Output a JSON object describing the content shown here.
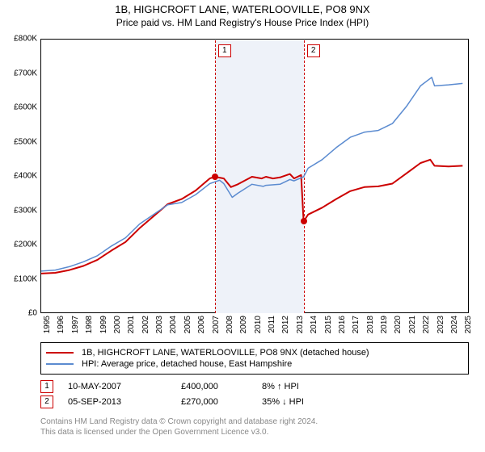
{
  "chart": {
    "title_line1": "1B, HIGHCROFT LANE, WATERLOOVILLE, PO8 9NX",
    "title_line2": "Price paid vs. HM Land Registry's House Price Index (HPI)",
    "title_fontsize": 13,
    "subtitle_fontsize": 12,
    "background_color": "#ffffff",
    "plot_border_color": "#000000",
    "shaded_band_color": "#eef2f9",
    "sale_marker_border": "#cc0000",
    "sale_dot_color": "#cc0000",
    "x": {
      "min": 1995,
      "max": 2025.5,
      "ticks": [
        1995,
        1996,
        1997,
        1998,
        1999,
        2000,
        2001,
        2002,
        2003,
        2004,
        2005,
        2006,
        2007,
        2008,
        2009,
        2010,
        2011,
        2012,
        2013,
        2014,
        2015,
        2016,
        2017,
        2018,
        2019,
        2020,
        2021,
        2022,
        2023,
        2024,
        2025
      ]
    },
    "y": {
      "min": 0,
      "max": 800,
      "ticks": [
        0,
        100,
        200,
        300,
        400,
        500,
        600,
        700,
        800
      ],
      "tick_labels": [
        "£0",
        "£100K",
        "£200K",
        "£300K",
        "£400K",
        "£500K",
        "£600K",
        "£700K",
        "£800K"
      ]
    },
    "shaded_band": {
      "from": 2007.36,
      "to": 2013.68
    },
    "series": [
      {
        "id": "property",
        "label": "1B, HIGHCROFT LANE, WATERLOOVILLE, PO8 9NX (detached house)",
        "color": "#cc0000",
        "width": 2,
        "segments": [
          [
            [
              1995,
              118
            ],
            [
              1996,
              120
            ],
            [
              1997,
              128
            ],
            [
              1998,
              140
            ],
            [
              1999,
              158
            ],
            [
              2000,
              185
            ],
            [
              2001,
              210
            ],
            [
              2002,
              250
            ],
            [
              2003,
              285
            ],
            [
              2004,
              320
            ],
            [
              2005,
              335
            ],
            [
              2006,
              360
            ],
            [
              2007,
              395
            ],
            [
              2007.36,
              400
            ]
          ],
          [
            [
              2007.36,
              400
            ],
            [
              2008,
              395
            ],
            [
              2008.5,
              370
            ],
            [
              2009,
              378
            ],
            [
              2010,
              400
            ],
            [
              2010.7,
              395
            ],
            [
              2011,
              400
            ],
            [
              2011.5,
              395
            ],
            [
              2012,
              398
            ],
            [
              2012.7,
              408
            ],
            [
              2013,
              395
            ],
            [
              2013.5,
              405
            ],
            [
              2013.68,
              270
            ]
          ],
          [
            [
              2013.68,
              270
            ],
            [
              2014,
              290
            ],
            [
              2015,
              310
            ],
            [
              2016,
              335
            ],
            [
              2017,
              358
            ],
            [
              2018,
              370
            ],
            [
              2019,
              372
            ],
            [
              2020,
              380
            ],
            [
              2021,
              410
            ],
            [
              2022,
              440
            ],
            [
              2022.7,
              450
            ],
            [
              2023,
              432
            ],
            [
              2024,
              430
            ],
            [
              2025,
              432
            ]
          ]
        ]
      },
      {
        "id": "hpi",
        "label": "HPI: Average price, detached house, East Hampshire",
        "color": "#5b8bd0",
        "width": 1.5,
        "segments": [
          [
            [
              1995,
              125
            ],
            [
              1996,
              128
            ],
            [
              1997,
              138
            ],
            [
              1998,
              152
            ],
            [
              1999,
              170
            ],
            [
              2000,
              198
            ],
            [
              2001,
              222
            ],
            [
              2002,
              262
            ],
            [
              2003,
              290
            ],
            [
              2004,
              318
            ],
            [
              2005,
              325
            ],
            [
              2006,
              348
            ],
            [
              2007,
              380
            ],
            [
              2007.7,
              390
            ],
            [
              2008,
              380
            ],
            [
              2008.6,
              340
            ],
            [
              2009,
              352
            ],
            [
              2010,
              378
            ],
            [
              2010.8,
              372
            ],
            [
              2011,
              375
            ],
            [
              2012,
              378
            ],
            [
              2012.7,
              392
            ],
            [
              2013,
              388
            ],
            [
              2013.68,
              400
            ],
            [
              2014,
              425
            ],
            [
              2015,
              450
            ],
            [
              2016,
              485
            ],
            [
              2017,
              515
            ],
            [
              2018,
              530
            ],
            [
              2019,
              535
            ],
            [
              2020,
              555
            ],
            [
              2021,
              605
            ],
            [
              2022,
              665
            ],
            [
              2022.8,
              690
            ],
            [
              2023,
              665
            ],
            [
              2024,
              668
            ],
            [
              2025,
              672
            ]
          ]
        ]
      }
    ],
    "sale_markers": [
      {
        "n": "1",
        "year": 2007.36,
        "price": 400
      },
      {
        "n": "2",
        "year": 2013.68,
        "price": 270
      }
    ]
  },
  "legend": {
    "rows": [
      {
        "color": "#cc0000",
        "label": "1B, HIGHCROFT LANE, WATERLOOVILLE, PO8 9NX (detached house)"
      },
      {
        "color": "#5b8bd0",
        "label": "HPI: Average price, detached house, East Hampshire"
      }
    ]
  },
  "sales": [
    {
      "n": "1",
      "date": "10-MAY-2007",
      "price": "£400,000",
      "diff_pct": "8%",
      "dir": "up",
      "suffix": "HPI"
    },
    {
      "n": "2",
      "date": "05-SEP-2013",
      "price": "£270,000",
      "diff_pct": "35%",
      "dir": "down",
      "suffix": "HPI"
    }
  ],
  "footer": {
    "line1": "Contains HM Land Registry data © Crown copyright and database right 2024.",
    "line2": "This data is licensed under the Open Government Licence v3.0."
  }
}
